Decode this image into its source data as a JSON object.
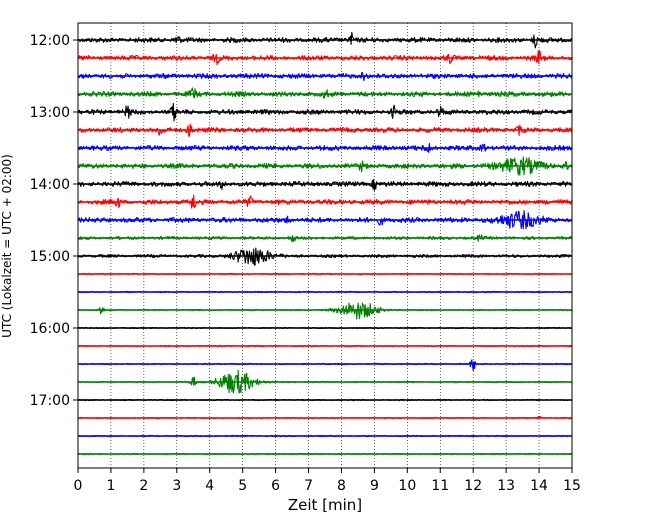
{
  "chart_data": {
    "type": "line",
    "title": "",
    "xlabel": "Zeit  [min]",
    "ylabel": "UTC (Lokalzeit = UTC + 02:00)",
    "xlim": [
      0,
      15
    ],
    "x_ticks": [
      0,
      1,
      2,
      3,
      4,
      5,
      6,
      7,
      8,
      9,
      10,
      11,
      12,
      13,
      14,
      15
    ],
    "x_grid": "dotted",
    "y_tick_labels": [
      "12:00",
      "13:00",
      "14:00",
      "15:00",
      "16:00",
      "17:00"
    ],
    "trace_interval_minutes": 15,
    "trace_colors_cycle": [
      "#000000",
      "#ff0000",
      "#0000ff",
      "#008000"
    ],
    "traces": [
      {
        "start": "12:00",
        "color": "#000000",
        "activity": "high",
        "events": [
          [
            3.0,
            0.6
          ],
          [
            8.3,
            0.7
          ],
          [
            13.9,
            0.8
          ]
        ]
      },
      {
        "start": "12:15",
        "color": "#ff0000",
        "activity": "high",
        "events": [
          [
            4.2,
            0.5
          ],
          [
            11.3,
            0.5
          ],
          [
            14.0,
            0.7
          ]
        ]
      },
      {
        "start": "12:30",
        "color": "#0000ff",
        "activity": "high",
        "events": [
          [
            8.7,
            0.6
          ]
        ]
      },
      {
        "start": "12:45",
        "color": "#008000",
        "activity": "high",
        "events": [
          [
            3.5,
            0.6
          ],
          [
            7.5,
            0.4
          ],
          [
            12.2,
            0.4
          ]
        ]
      },
      {
        "start": "13:00",
        "color": "#000000",
        "activity": "high",
        "events": [
          [
            1.5,
            0.6
          ],
          [
            2.9,
            0.8
          ],
          [
            9.6,
            0.6
          ],
          [
            11.0,
            0.5
          ]
        ]
      },
      {
        "start": "13:15",
        "color": "#ff0000",
        "activity": "high",
        "events": [
          [
            2.5,
            0.6
          ],
          [
            3.4,
            0.8
          ],
          [
            13.4,
            0.4
          ]
        ]
      },
      {
        "start": "13:30",
        "color": "#0000ff",
        "activity": "high",
        "events": [
          [
            10.6,
            0.7
          ],
          [
            12.3,
            0.4
          ]
        ]
      },
      {
        "start": "13:45",
        "color": "#008000",
        "activity": "high",
        "events": [
          [
            8.6,
            0.4
          ],
          [
            13.4,
            0.9
          ],
          [
            14.8,
            0.4
          ]
        ]
      },
      {
        "start": "14:00",
        "color": "#000000",
        "activity": "high",
        "events": [
          [
            4.4,
            0.5
          ],
          [
            9.0,
            0.5
          ]
        ]
      },
      {
        "start": "14:15",
        "color": "#ff0000",
        "activity": "high",
        "events": [
          [
            1.2,
            0.6
          ],
          [
            3.5,
            0.8
          ],
          [
            5.2,
            0.5
          ]
        ]
      },
      {
        "start": "14:30",
        "color": "#0000ff",
        "activity": "high",
        "events": [
          [
            6.4,
            0.4
          ],
          [
            9.2,
            0.5
          ],
          [
            13.4,
            0.9
          ]
        ]
      },
      {
        "start": "14:45",
        "color": "#008000",
        "activity": "medium",
        "events": [
          [
            6.5,
            0.4
          ],
          [
            12.2,
            0.3
          ]
        ]
      },
      {
        "start": "15:00",
        "color": "#000000",
        "activity": "medium",
        "events": [
          [
            5.3,
            1.0
          ]
        ]
      },
      {
        "start": "15:15",
        "color": "#ff0000",
        "activity": "low",
        "events": []
      },
      {
        "start": "15:30",
        "color": "#0000ff",
        "activity": "low",
        "events": []
      },
      {
        "start": "15:45",
        "color": "#008000",
        "activity": "low",
        "events": [
          [
            0.7,
            0.4
          ],
          [
            8.5,
            1.0
          ]
        ]
      },
      {
        "start": "16:00",
        "color": "#000000",
        "activity": "low",
        "events": []
      },
      {
        "start": "16:15",
        "color": "#ff0000",
        "activity": "low",
        "events": []
      },
      {
        "start": "16:30",
        "color": "#0000ff",
        "activity": "low",
        "events": [
          [
            12.0,
            0.7
          ]
        ]
      },
      {
        "start": "16:45",
        "color": "#008000",
        "activity": "low",
        "events": [
          [
            3.5,
            0.6
          ],
          [
            4.8,
            1.3
          ]
        ]
      },
      {
        "start": "17:00",
        "color": "#000000",
        "activity": "low",
        "events": []
      },
      {
        "start": "17:15",
        "color": "#ff0000",
        "activity": "low",
        "events": [
          [
            14.0,
            0.2
          ]
        ]
      },
      {
        "start": "17:30",
        "color": "#0000ff",
        "activity": "low",
        "events": []
      },
      {
        "start": "17:45",
        "color": "#008000",
        "activity": "low",
        "events": []
      }
    ]
  }
}
